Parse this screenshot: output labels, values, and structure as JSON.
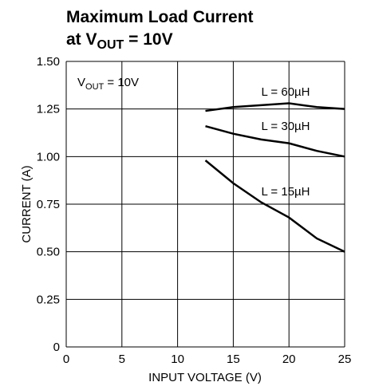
{
  "chart_data": {
    "type": "line",
    "title": "Maximum Load Current",
    "subtitle": {
      "text": "at V",
      "sub": "OUT",
      "rest": " = 10V"
    },
    "annotation": {
      "text": "V",
      "sub": "OUT",
      "rest": " = 10V"
    },
    "xlabel": "INPUT VOLTAGE (V)",
    "ylabel": "CURRENT (A)",
    "x": [
      12.5,
      15,
      17.5,
      20,
      22.5,
      25
    ],
    "series": [
      {
        "name": "L = 60µH",
        "color": "#000000",
        "values": [
          1.24,
          1.26,
          1.27,
          1.28,
          1.26,
          1.25
        ]
      },
      {
        "name": "L = 30µH",
        "color": "#000000",
        "values": [
          1.16,
          1.12,
          1.09,
          1.07,
          1.03,
          1.0
        ]
      },
      {
        "name": "L = 15µH",
        "color": "#000000",
        "values": [
          0.98,
          0.86,
          0.76,
          0.68,
          0.57,
          0.5
        ]
      }
    ],
    "xlim": [
      0,
      25
    ],
    "xticks": [
      0,
      5,
      10,
      15,
      20,
      25
    ],
    "ylim": [
      0,
      1.5
    ],
    "yticks": [
      0,
      0.25,
      {
        "value": 0.5,
        "label": "0.50"
      },
      0.75,
      {
        "value": 1,
        "label": "1.00"
      },
      1.25,
      {
        "value": 1.5,
        "label": "1.50"
      }
    ],
    "grid": true
  }
}
